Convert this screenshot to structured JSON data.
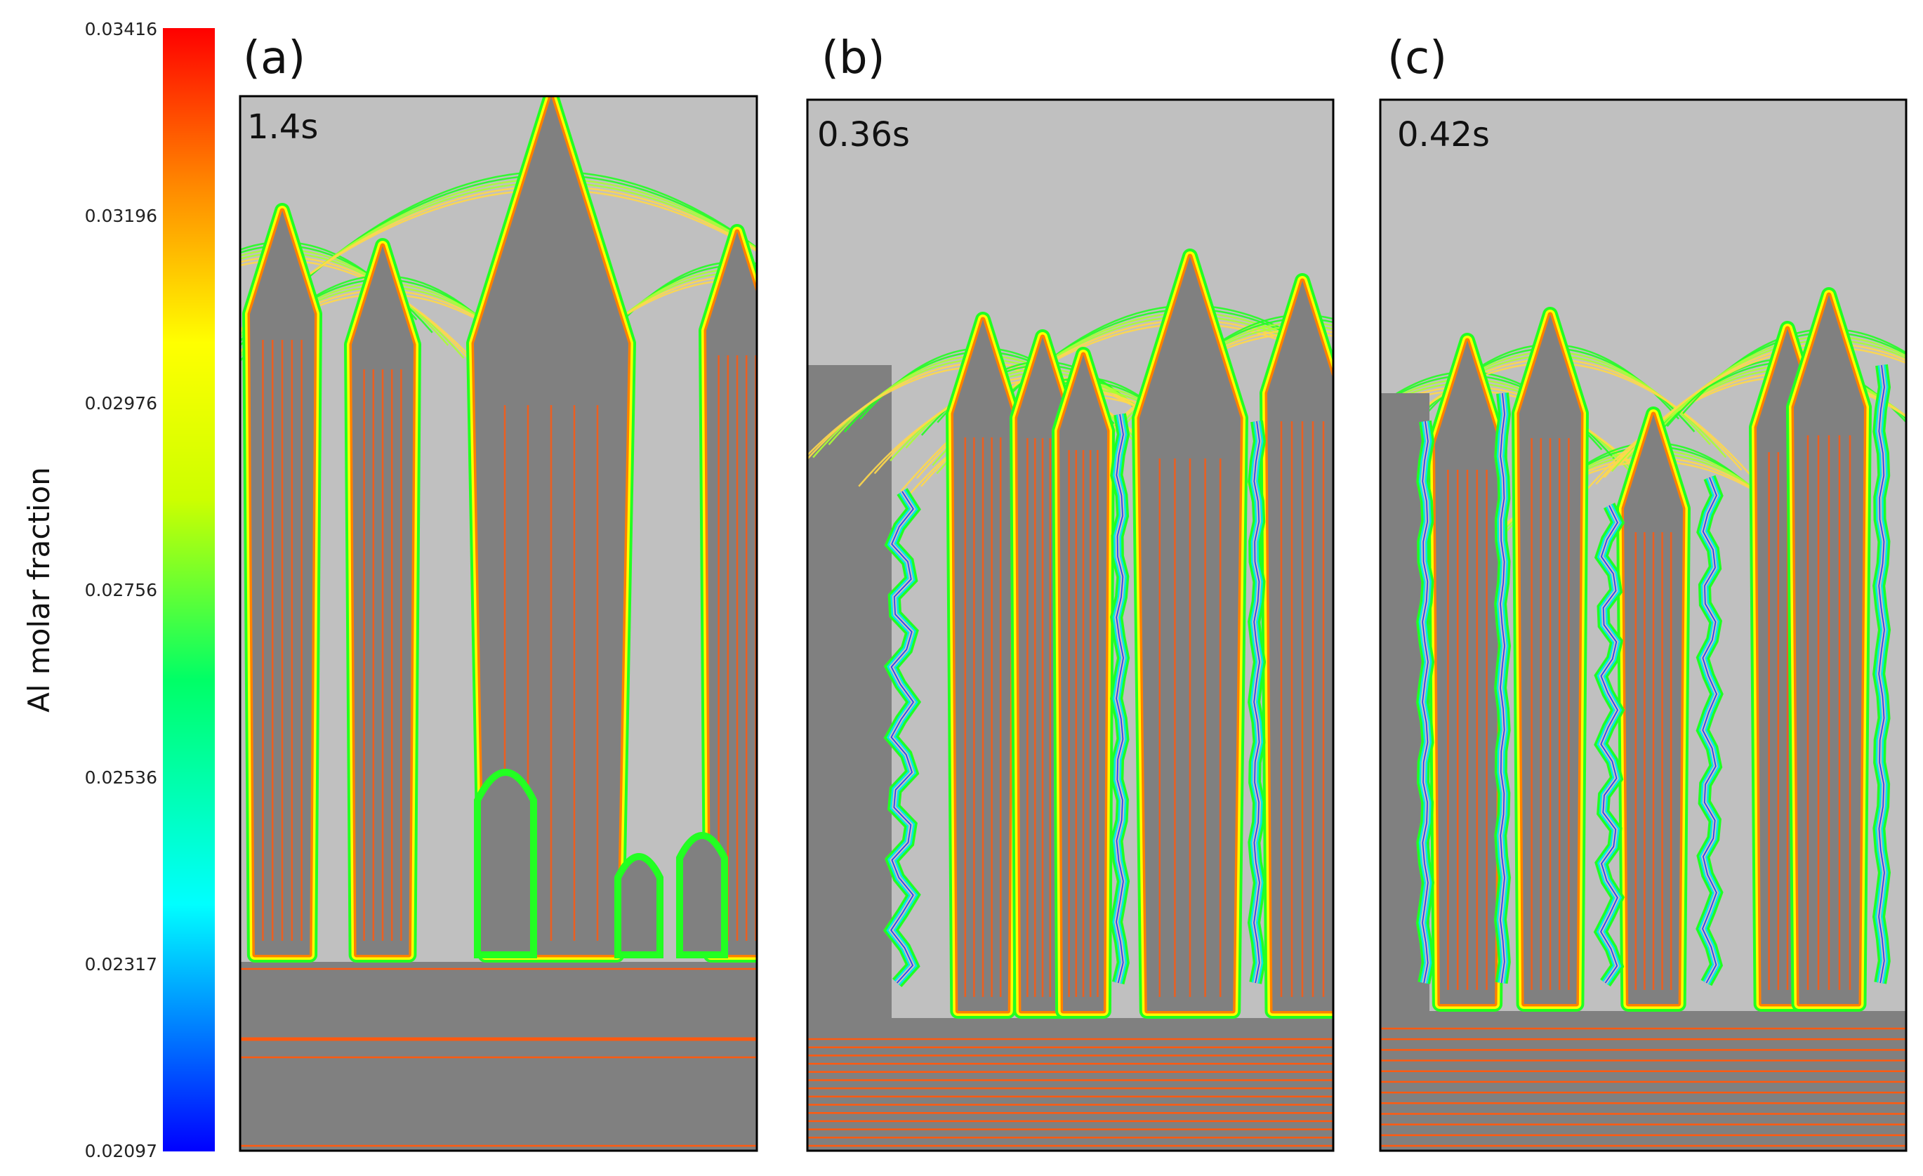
{
  "colorbar": {
    "title": "Al molar fraction",
    "ticks": [
      "0.03416",
      "0.03196",
      "0.02976",
      "0.02756",
      "0.02536",
      "0.02317",
      "0.02097"
    ],
    "min": 0.02097,
    "max": 0.03416,
    "colors": [
      "#0000ff",
      "#00ffff",
      "#00ff66",
      "#ccff00",
      "#ffff00",
      "#ff8800",
      "#ff0000"
    ]
  },
  "colors": {
    "liquid": "#c0c0c0",
    "solid": "#808080",
    "contour": "#ff5a10",
    "band_outer": "#ff8000",
    "band_mid": "#ffff00",
    "band_inner": "#22ff22",
    "band_core": "#00e6e6",
    "vein": "#2030ff"
  },
  "panels": [
    {
      "label": "(a)",
      "time": "1.4s"
    },
    {
      "label": "(b)",
      "time": "0.36s"
    },
    {
      "label": "(c)",
      "time": "0.42s"
    }
  ]
}
